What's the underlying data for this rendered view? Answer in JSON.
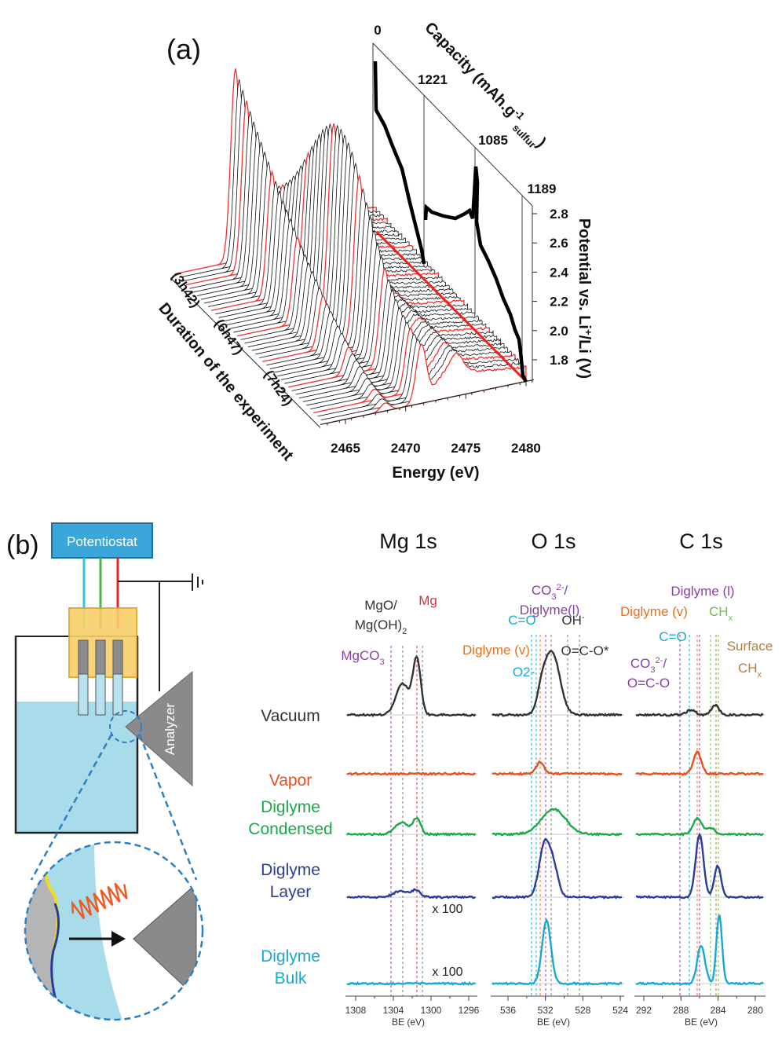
{
  "panel_a": {
    "label": "(a)",
    "capacity_title": [
      "Capacity (mAh.g",
      "-1",
      "sulfur",
      ")"
    ],
    "capacity_ticks": [
      "0",
      "1221",
      "1085",
      "1189"
    ],
    "potential_title": [
      "Potential vs. Li",
      "+",
      "/Li (V)"
    ],
    "potential_ticks": [
      "2.8",
      "2.6",
      "2.4",
      "2.2",
      "2.0",
      "1.8"
    ],
    "duration_ticks": [
      "(3h42)",
      "(6h47)",
      "(7h24)"
    ],
    "duration_title": "Duration of the experiment",
    "energy_ticks": [
      "2465",
      "2470",
      "2475",
      "2480"
    ],
    "energy_title": "Energy (eV)"
  },
  "panel_b": {
    "label": "(b)",
    "schematic": {
      "potentiostat": "Potentiostat",
      "analyzer": "Analyzer"
    },
    "columns": [
      {
        "title": "Mg 1s",
        "ticks": [
          "1308",
          "1304",
          "1300",
          "1296"
        ],
        "axis_label": "BE (eV)"
      },
      {
        "title": "O 1s",
        "ticks": [
          "536",
          "532",
          "528",
          "524"
        ],
        "axis_label": "BE (eV)"
      },
      {
        "title": "C 1s",
        "ticks": [
          "292",
          "288",
          "284",
          "280"
        ],
        "axis_label": "BE (eV)"
      }
    ],
    "rows": [
      {
        "label": [
          "Vacuum"
        ]
      },
      {
        "label": [
          "Vapor"
        ]
      },
      {
        "label": [
          "Diglyme",
          "Condensed"
        ]
      },
      {
        "label": [
          "Diglyme",
          "Layer"
        ]
      },
      {
        "label": [
          "Diglyme",
          "Bulk"
        ]
      }
    ],
    "multipliers": [
      "x 100",
      "x 100"
    ],
    "peak_labels": [
      [
        "MgO/"
      ],
      [
        "Mg(OH)",
        "2"
      ],
      [
        "Mg"
      ],
      [
        "MgCO",
        "3"
      ],
      [
        "CO",
        "3",
        "2-",
        "/"
      ],
      [
        "Diglyme(l)"
      ],
      [
        "C=O"
      ],
      [
        "OH",
        "-"
      ],
      [
        "Diglyme (v)"
      ],
      [
        "O=C-O*"
      ],
      [
        "O",
        "2-"
      ],
      [
        "Diglyme (l)"
      ],
      [
        "Diglyme (v)"
      ],
      [
        "CH",
        "x"
      ],
      [
        "C=O"
      ],
      [
        "Surface"
      ],
      [
        "CH",
        "x"
      ],
      [
        "CO",
        "3",
        "2-",
        "/"
      ],
      [
        "O=C-O"
      ]
    ]
  }
}
